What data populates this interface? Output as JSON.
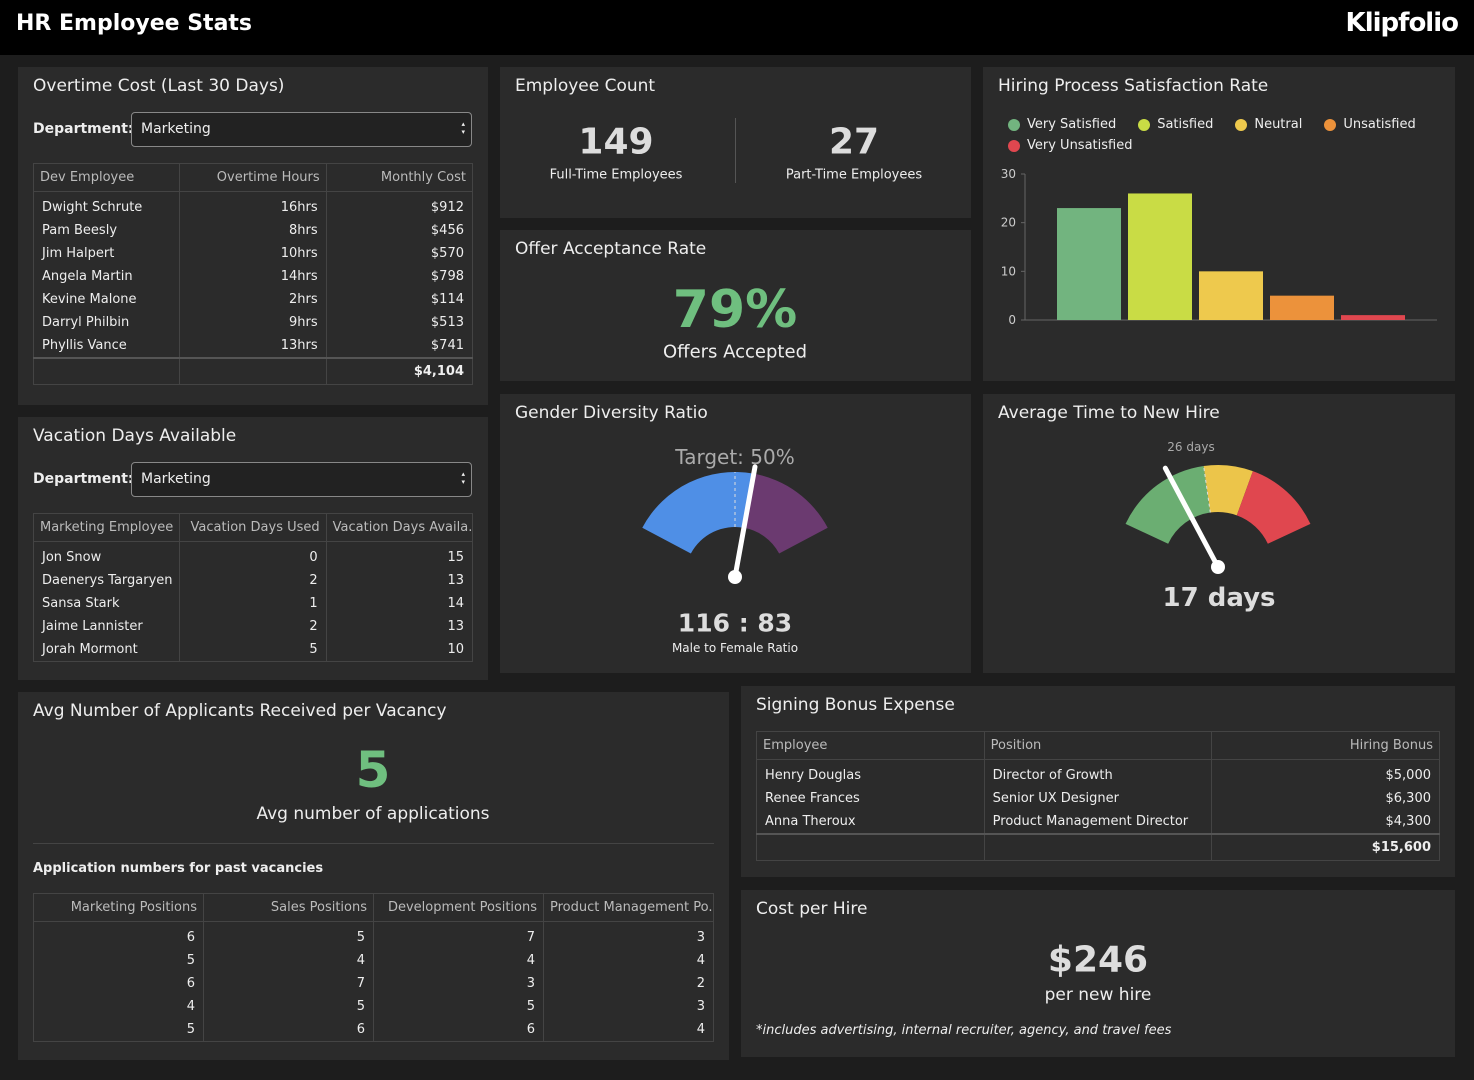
{
  "header": {
    "title": "HR Employee Stats",
    "logo": "Klipfolio"
  },
  "overtime": {
    "title": "Overtime Cost (Last 30 Days)",
    "filter_label": "Department:",
    "filter_value": "Marketing",
    "table": {
      "columns": [
        "Dev Employee",
        "Overtime Hours",
        "Monthly Cost"
      ],
      "rows": [
        [
          "Dwight Schrute",
          "16hrs",
          "$912"
        ],
        [
          "Pam Beesly",
          "8hrs",
          "$456"
        ],
        [
          "Jim Halpert",
          "10hrs",
          "$570"
        ],
        [
          "Angela Martin",
          "14hrs",
          "$798"
        ],
        [
          "Kevine Malone",
          "2hrs",
          "$114"
        ],
        [
          "Darryl Philbin",
          "9hrs",
          "$513"
        ],
        [
          "Phyllis Vance",
          "13hrs",
          "$741"
        ]
      ],
      "total": "$4,104"
    }
  },
  "vacation": {
    "title": "Vacation Days Available",
    "filter_label": "Department:",
    "filter_value": "Marketing",
    "table": {
      "columns": [
        "Marketing Employee",
        "Vacation Days Used",
        "Vacation Days Availa..."
      ],
      "rows": [
        [
          "Jon Snow",
          0,
          15
        ],
        [
          "Daenerys Targaryen",
          2,
          13
        ],
        [
          "Sansa Stark",
          1,
          14
        ],
        [
          "Jaime Lannister",
          2,
          13
        ],
        [
          "Jorah Mormont",
          5,
          10
        ]
      ]
    }
  },
  "employee_count": {
    "title": "Employee Count",
    "stats": [
      {
        "value": 149,
        "label": "Full-Time Employees"
      },
      {
        "value": 27,
        "label": "Part-Time Employees"
      }
    ]
  },
  "offer": {
    "title": "Offer Acceptance Rate",
    "value": "79%",
    "caption": "Offers Accepted"
  },
  "chart_data": {
    "type": "bar",
    "title": "Hiring Process Satisfaction Rate",
    "categories": [
      "Very Satisfied",
      "Satisfied",
      "Neutral",
      "Unsatisfied",
      "Very Unsatisfied"
    ],
    "values": [
      23,
      26,
      10,
      5,
      1
    ],
    "colors": [
      "#72b47f",
      "#c9dc45",
      "#eec94d",
      "#ec923b",
      "#e0474f"
    ],
    "ylim": [
      0,
      30
    ],
    "yticks": [
      0,
      10,
      20,
      30
    ],
    "legend": "top"
  },
  "gender": {
    "title": "Gender Diversity Ratio",
    "target": "Target: 50%",
    "ratio": "116 : 83",
    "caption": "Male to Female Ratio"
  },
  "time_to_hire": {
    "title": "Average Time to New Hire",
    "target": "26 days",
    "value": "17 days"
  },
  "applicants": {
    "title": "Avg Number of Applicants Received per Vacancy",
    "value": 5,
    "caption": "Avg number of applications",
    "subtitle": "Application numbers for past vacancies",
    "table": {
      "columns": [
        "Marketing Positions",
        "Sales Positions",
        "Development Positions",
        "Product Management Po..."
      ],
      "rows": [
        [
          6,
          5,
          7,
          3
        ],
        [
          5,
          4,
          4,
          4
        ],
        [
          6,
          7,
          3,
          2
        ],
        [
          4,
          5,
          5,
          3
        ],
        [
          5,
          6,
          6,
          4
        ]
      ]
    }
  },
  "signing": {
    "title": "Signing Bonus Expense",
    "table": {
      "columns": [
        "Employee",
        "Position",
        "Hiring Bonus"
      ],
      "rows": [
        [
          "Henry Douglas",
          "Director of Growth",
          "$5,000"
        ],
        [
          "Renee Frances",
          "Senior UX Designer",
          "$6,300"
        ],
        [
          "Anna Theroux",
          "Product Management Director",
          "$4,300"
        ]
      ],
      "total": "$15,600"
    }
  },
  "cost": {
    "title": "Cost per Hire",
    "value": "$246",
    "caption": "per new hire",
    "note": "*includes advertising, internal recruiter, agency, and travel fees"
  }
}
